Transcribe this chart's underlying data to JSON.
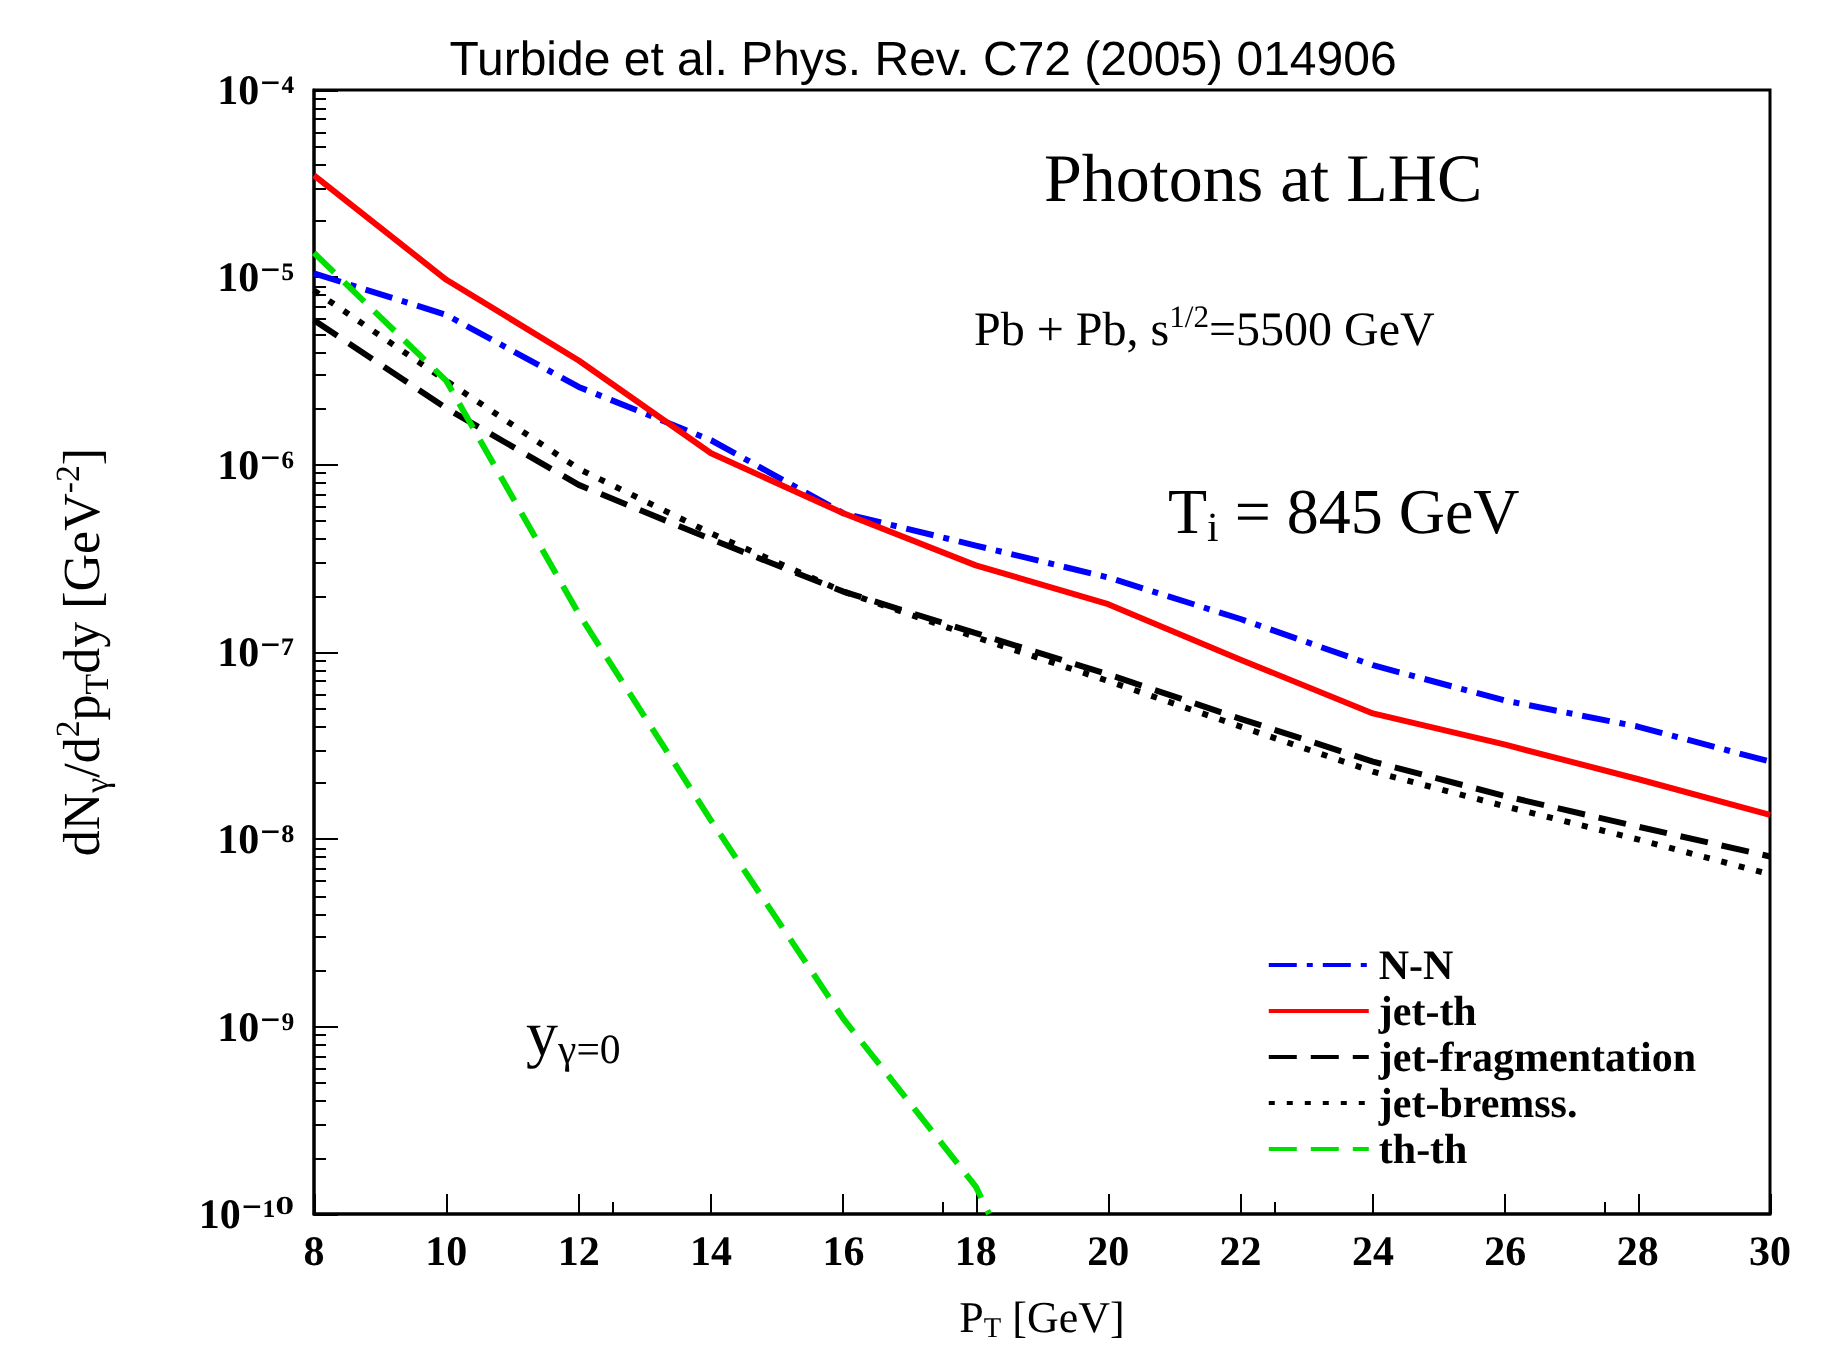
{
  "chart_data": {
    "type": "line",
    "title": "Turbide et al. Phys. Rev. C72 (2005) 014906",
    "xlabel": "P$_{T}$ [GeV]",
    "ylabel": "dN$_{γ}$/d$^{2}$p$_{T}$dy [GeV$^{-2}$]",
    "annotations": [
      "Photons at LHC",
      "Pb + Pb, s$^{1/2}$=5500 GeV",
      "T$_{i}$ = 845 GeV",
      "y$_{γ=0}$"
    ],
    "x": [
      8,
      10,
      12,
      14,
      16,
      18,
      20,
      22,
      24,
      26,
      28,
      30
    ],
    "series": [
      {
        "name": "N-N",
        "color": "#0000ff",
        "line_style": "dashdot",
        "values": [
          1.05e-05,
          6.3e-06,
          2.6e-06,
          1.35e-06,
          5.5e-07,
          3.7e-07,
          2.5e-07,
          1.5e-07,
          8.5e-08,
          5.5e-08,
          4e-08,
          2.6e-08
        ]
      },
      {
        "name": "jet-th",
        "color": "#ff0000",
        "line_style": "solid",
        "values": [
          3.5e-05,
          9.7e-06,
          3.6e-06,
          1.15e-06,
          5.5e-07,
          2.9e-07,
          1.8e-07,
          9.1e-08,
          4.7e-08,
          3.2e-08,
          2.1e-08,
          1.35e-08
        ]
      },
      {
        "name": "jet-fragmentation",
        "color": "#000000",
        "line_style": "dashed",
        "values": [
          5.9e-06,
          2e-06,
          7.8e-07,
          4e-07,
          2.1e-07,
          1.26e-07,
          7.6e-08,
          4.4e-08,
          2.6e-08,
          1.7e-08,
          1.17e-08,
          8.1e-09
        ]
      },
      {
        "name": "jet-bremss.",
        "color": "#000000",
        "line_style": "dotted",
        "values": [
          8.5e-06,
          2.8e-06,
          9.5e-07,
          4.3e-07,
          2.1e-07,
          1.2e-07,
          7e-08,
          4e-08,
          2.3e-08,
          1.5e-08,
          1e-08,
          6.5e-09
        ]
      },
      {
        "name": "th-th",
        "color": "#00e000",
        "line_style": "dashed",
        "x": [
          8,
          10,
          12,
          14,
          16,
          18,
          18.2
        ],
        "values": [
          1.35e-05,
          2.8e-06,
          1.6e-07,
          1.26e-08,
          1.1e-09,
          1.4e-10,
          1e-10
        ]
      }
    ],
    "log": "y",
    "xlim": [
      8,
      30
    ],
    "xticks": [
      8,
      10,
      12,
      14,
      16,
      18,
      20,
      22,
      24,
      26,
      28,
      30
    ],
    "ylim": [
      1e-10,
      0.0001
    ],
    "yticks": [
      {
        "value": 1e-10,
        "label": "10⁻¹⁰"
      },
      {
        "value": 1e-09,
        "label": "10⁻⁹"
      },
      {
        "value": 1e-08,
        "label": "10⁻⁸"
      },
      {
        "value": 1e-07,
        "label": "10⁻⁷"
      },
      {
        "value": 1e-06,
        "label": "10⁻⁶"
      },
      {
        "value": 1e-05,
        "label": "10⁻⁵"
      },
      {
        "value": 0.0001,
        "label": "10⁻⁴"
      }
    ],
    "grid": false,
    "legend": "bottom right",
    "marker": "none"
  }
}
